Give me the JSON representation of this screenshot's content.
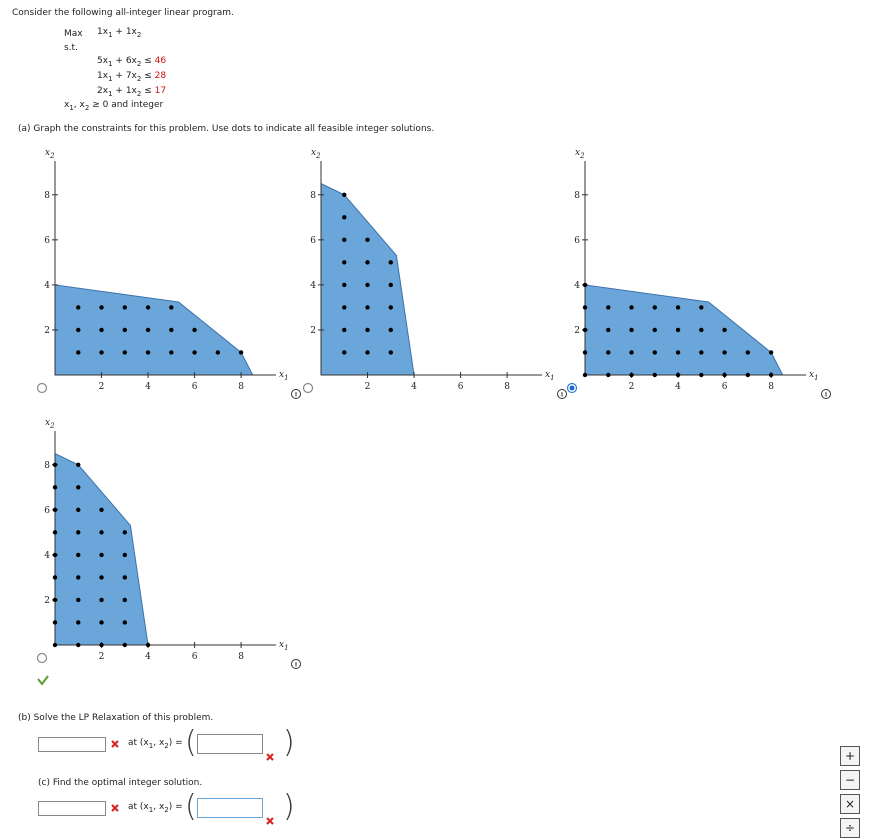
{
  "header": {
    "prompt": "Consider the following all-integer linear program."
  },
  "program": {
    "objective": {
      "keyword": "Max",
      "terms": [
        {
          "text": "1x",
          "sub": "1"
        },
        {
          "text": "1x",
          "sub": "2"
        }
      ]
    },
    "st": "s.t.",
    "plus": "+",
    "constraints": [
      {
        "terms": [
          {
            "text": "5x",
            "sub": "1"
          },
          {
            "text": "6x",
            "sub": "2"
          }
        ],
        "op": "≤",
        "rhs": 46
      },
      {
        "terms": [
          {
            "text": "1x",
            "sub": "1"
          },
          {
            "text": "7x",
            "sub": "2"
          }
        ],
        "op": "≤",
        "rhs": 28
      },
      {
        "terms": [
          {
            "text": "2x",
            "sub": "1"
          },
          {
            "text": "1x",
            "sub": "2"
          }
        ],
        "op": "≤",
        "rhs": 17
      }
    ],
    "nonneg": {
      "vars": [
        {
          "text": "x",
          "sub": "1"
        },
        {
          "text": "x",
          "sub": "2"
        }
      ],
      "comma": ",",
      "text": "≥ 0 and integer"
    }
  },
  "part_a": {
    "prompt": "(a) Graph the constraints for this problem. Use dots to indicate all feasible integer solutions.",
    "axes": {
      "x_label": {
        "text": "x",
        "sub": "1"
      },
      "y_label": {
        "text": "x",
        "sub": "2"
      },
      "xlim": [
        0,
        9.5
      ],
      "ylim": [
        0,
        9.5
      ],
      "xticks": [
        2,
        4,
        6,
        8
      ],
      "yticks": [
        2,
        4,
        6,
        8
      ]
    },
    "graphs": [
      {
        "selected": false,
        "region": {
          "x": [
            0,
            0,
            5.31,
            8,
            8.5
          ],
          "y": [
            0,
            4,
            3.24,
            1,
            0
          ]
        },
        "points": {
          "x": [
            1,
            2,
            3,
            4,
            5,
            6,
            7,
            8,
            1,
            2,
            3,
            4,
            5,
            6,
            1,
            2,
            3,
            4,
            5
          ],
          "y": [
            1,
            1,
            1,
            1,
            1,
            1,
            1,
            1,
            2,
            2,
            2,
            2,
            2,
            2,
            3,
            3,
            3,
            3,
            3
          ]
        }
      },
      {
        "selected": false,
        "region": {
          "x": [
            0,
            0,
            1,
            3.24,
            4
          ],
          "y": [
            0,
            8.5,
            8,
            5.31,
            0
          ]
        },
        "points": {
          "x": [
            1,
            1,
            1,
            1,
            1,
            1,
            1,
            1,
            2,
            2,
            2,
            2,
            2,
            2,
            3,
            3,
            3,
            3,
            3
          ],
          "y": [
            1,
            2,
            3,
            4,
            5,
            6,
            7,
            8,
            1,
            2,
            3,
            4,
            5,
            6,
            1,
            2,
            3,
            4,
            5
          ]
        }
      },
      {
        "selected": true,
        "region": {
          "x": [
            0,
            0,
            5.31,
            8,
            8.5
          ],
          "y": [
            0,
            4,
            3.24,
            1,
            0
          ]
        },
        "points": {
          "x": [
            0,
            1,
            2,
            3,
            4,
            5,
            6,
            7,
            8,
            0,
            1,
            2,
            3,
            4,
            5,
            6,
            7,
            8,
            0,
            1,
            2,
            3,
            4,
            5,
            6,
            0,
            1,
            2,
            3,
            4,
            5,
            0
          ],
          "y": [
            0,
            0,
            0,
            0,
            0,
            0,
            0,
            0,
            0,
            1,
            1,
            1,
            1,
            1,
            1,
            1,
            1,
            1,
            2,
            2,
            2,
            2,
            2,
            2,
            2,
            3,
            3,
            3,
            3,
            3,
            3,
            4
          ]
        }
      },
      {
        "selected": false,
        "region": {
          "x": [
            0,
            0,
            1,
            3.24,
            4
          ],
          "y": [
            0,
            8.5,
            8,
            5.31,
            0
          ]
        },
        "points": {
          "x": [
            0,
            0,
            0,
            0,
            0,
            0,
            0,
            0,
            0,
            1,
            1,
            1,
            1,
            1,
            1,
            1,
            1,
            1,
            2,
            2,
            2,
            2,
            2,
            2,
            2,
            3,
            3,
            3,
            3,
            3,
            3,
            4
          ],
          "y": [
            0,
            1,
            2,
            3,
            4,
            5,
            6,
            7,
            8,
            0,
            1,
            2,
            3,
            4,
            5,
            6,
            7,
            8,
            0,
            1,
            2,
            3,
            4,
            5,
            6,
            0,
            1,
            2,
            3,
            4,
            5,
            0
          ]
        }
      }
    ]
  },
  "pair": {
    "at": "at (",
    "vars": [
      {
        "text": "x",
        "sub": "1"
      },
      {
        "text": "x",
        "sub": "2"
      }
    ],
    "comma": ",",
    "close": ") =",
    "open_paren": "(",
    "close_paren": ")"
  },
  "part_b": {
    "prompt": "(b) Solve the LP Relaxation of this problem."
  },
  "part_c": {
    "prompt": "(c) Find the optimal integer solution."
  },
  "toolbar": [
    "+",
    "−",
    "×",
    "÷"
  ]
}
